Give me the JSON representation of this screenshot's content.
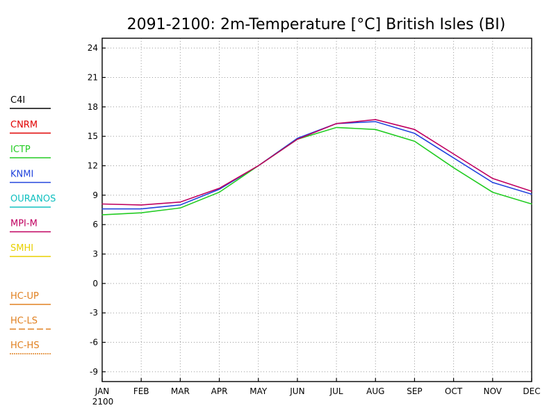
{
  "chart_data": {
    "type": "line",
    "title": "2091-2100: 2m-Temperature [°C] British Isles (BI)",
    "x": [
      "JAN",
      "FEB",
      "MAR",
      "APR",
      "MAY",
      "JUN",
      "JUL",
      "AUG",
      "SEP",
      "OCT",
      "NOV",
      "DEC"
    ],
    "year_label": "2100",
    "ylim": [
      -10,
      25
    ],
    "yticks": [
      "-9",
      "-6",
      "-3",
      "0",
      "3",
      "6",
      "9",
      "12",
      "15",
      "18",
      "21",
      "24"
    ],
    "grid": true,
    "legend_placement": "left",
    "legend": [
      {
        "label": "C4I",
        "color": "#000000",
        "style": "solid"
      },
      {
        "label": "CNRM",
        "color": "#e00000",
        "style": "solid"
      },
      {
        "label": "ICTP",
        "color": "#22cc22",
        "style": "solid"
      },
      {
        "label": "KNMI",
        "color": "#2244dd",
        "style": "solid"
      },
      {
        "label": "OURANOS",
        "color": "#10c0c0",
        "style": "solid"
      },
      {
        "label": "MPI-M",
        "color": "#c00060",
        "style": "solid"
      },
      {
        "label": "SMHI",
        "color": "#e8d000",
        "style": "solid"
      },
      {
        "label": "HC-UP",
        "color": "#e08020",
        "style": "solid"
      },
      {
        "label": "HC-LS",
        "color": "#e08020",
        "style": "dashed"
      },
      {
        "label": "HC-HS",
        "color": "#e08020",
        "style": "dotted"
      }
    ],
    "series": [
      {
        "name": "KNMI",
        "color": "#2244dd",
        "values": [
          7.6,
          7.6,
          8.0,
          9.6,
          12.0,
          14.8,
          16.3,
          16.5,
          15.3,
          12.8,
          10.3,
          9.1
        ]
      },
      {
        "name": "ICTP",
        "color": "#22cc22",
        "values": [
          7.0,
          7.2,
          7.7,
          9.3,
          12.0,
          14.7,
          15.9,
          15.7,
          14.5,
          11.8,
          9.3,
          8.1
        ]
      },
      {
        "name": "MPI-M",
        "color": "#c00060",
        "values": [
          8.1,
          8.0,
          8.3,
          9.7,
          12.0,
          14.7,
          16.3,
          16.7,
          15.7,
          13.2,
          10.7,
          9.4
        ]
      }
    ]
  }
}
